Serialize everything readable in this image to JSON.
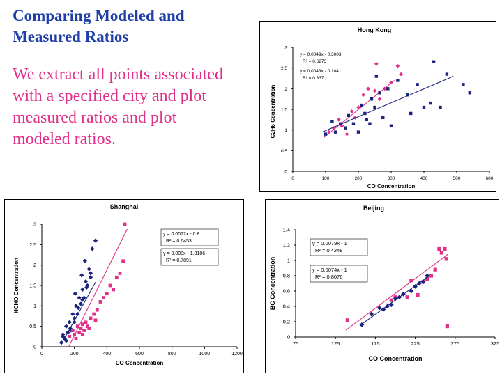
{
  "slide": {
    "title": "Comparing Modeled and  Measured Ratios",
    "body": "We extract all points associated with a specified city and plot measured ratios and plot modeled ratios."
  },
  "colors": {
    "measured": "#e0308a",
    "modeled": "#1a237e",
    "title": "#1f3fa8"
  },
  "chart_data": [
    {
      "type": "scatter",
      "title": "Hong Kong",
      "xlabel": "CO Concentration",
      "ylabel": "C2H6 Concentration",
      "xlim": [
        0,
        600
      ],
      "ylim": [
        0,
        3
      ],
      "xticks": [
        "0",
        "100",
        "200",
        "300",
        "400",
        "500",
        "600"
      ],
      "yticks": [
        "0",
        "0.5",
        "1",
        "1.5",
        "2",
        "2.5",
        "3"
      ],
      "legend": "top-left",
      "annotations": [
        {
          "eq": "y = 0.0049x - 0.3003",
          "r2": "R² = 0.6273"
        },
        {
          "eq": "y = 0.0043x - 0.1041",
          "r2": "R² = 0.337"
        }
      ],
      "series": [
        {
          "color": "#e0308a",
          "marker": "diamond",
          "x": [
            110,
            125,
            140,
            150,
            165,
            180,
            190,
            200,
            215,
            230,
            240,
            250,
            255,
            265,
            280,
            300,
            320,
            330
          ],
          "y": [
            0.95,
            1.05,
            1.25,
            1.1,
            0.9,
            1.45,
            1.3,
            1.55,
            1.85,
            2.0,
            1.75,
            1.95,
            2.6,
            1.75,
            2.0,
            2.15,
            2.55,
            2.35
          ],
          "fit": [
            [
              95,
              0.82
            ],
            [
              310,
              2.2
            ]
          ]
        },
        {
          "color": "#1a237e",
          "marker": "square",
          "x": [
            100,
            120,
            130,
            145,
            160,
            170,
            185,
            200,
            210,
            220,
            225,
            235,
            240,
            250,
            255,
            265,
            275,
            290,
            300,
            320,
            350,
            360,
            380,
            400,
            420,
            430,
            450,
            470,
            520,
            540
          ],
          "y": [
            0.9,
            1.2,
            0.95,
            1.15,
            1.05,
            1.35,
            1.15,
            0.95,
            1.6,
            1.4,
            1.25,
            1.15,
            1.75,
            1.55,
            2.3,
            1.9,
            1.3,
            2.0,
            1.1,
            2.2,
            1.85,
            1.4,
            2.1,
            1.55,
            1.65,
            2.65,
            1.55,
            2.35,
            2.1,
            1.9
          ],
          "fit": [
            [
              90,
              0.95
            ],
            [
              490,
              2.3
            ]
          ]
        }
      ]
    },
    {
      "type": "scatter",
      "title": "Shanghai",
      "xlabel": "CO Concentration",
      "ylabel": "HCHO Concentration",
      "xlim": [
        0,
        1200
      ],
      "ylim": [
        0,
        3
      ],
      "xticks": [
        "0",
        "200",
        "400",
        "600",
        "800",
        "1000",
        "1200"
      ],
      "yticks": [
        "0",
        "0.5",
        "1",
        "1.5",
        "2",
        "2.5",
        "3"
      ],
      "legend": "top-right",
      "annotations": [
        {
          "eq": "y = 0.0072x - 0.8",
          "r2": "R² = 0.6453"
        },
        {
          "eq": "y = 0.008x - 1.3186",
          "r2": "R² = 0.7891"
        }
      ],
      "series": [
        {
          "color": "#1a237e",
          "marker": "diamond",
          "x": [
            120,
            130,
            140,
            150,
            160,
            170,
            180,
            190,
            200,
            210,
            220,
            230,
            240,
            250,
            260,
            270,
            280,
            290,
            300,
            310,
            150,
            175,
            200,
            225,
            250,
            275,
            300,
            330,
            130,
            205,
            245,
            265
          ],
          "y": [
            0.1,
            0.3,
            0.2,
            0.5,
            0.35,
            0.6,
            0.4,
            0.8,
            0.6,
            1.0,
            0.8,
            1.2,
            1.05,
            1.4,
            1.2,
            1.6,
            1.5,
            1.9,
            1.7,
            2.4,
            0.15,
            0.45,
            0.7,
            0.95,
            1.15,
            1.45,
            1.8,
            2.6,
            0.25,
            1.3,
            1.75,
            2.1
          ],
          "fit": [
            [
              115,
              0.03
            ],
            [
              330,
              1.58
            ]
          ]
        },
        {
          "color": "#e0308a",
          "marker": "square",
          "x": [
            170,
            190,
            200,
            220,
            230,
            240,
            250,
            260,
            270,
            280,
            300,
            320,
            340,
            360,
            380,
            400,
            420,
            440,
            460,
            480,
            500,
            510,
            210,
            250,
            290,
            330
          ],
          "y": [
            0.25,
            0.4,
            0.3,
            0.5,
            0.35,
            0.45,
            0.55,
            0.4,
            0.6,
            0.5,
            0.7,
            0.8,
            0.9,
            1.1,
            1.2,
            1.3,
            1.5,
            1.4,
            1.7,
            1.8,
            2.1,
            3.0,
            0.2,
            0.3,
            0.45,
            0.65
          ],
          "fit": [
            [
              165,
              0.0
            ],
            [
              525,
              2.88
            ]
          ]
        }
      ]
    },
    {
      "type": "scatter",
      "title": "Beijing",
      "xlabel": "CO Concentration",
      "ylabel": "BC Concentration",
      "xlim": [
        75,
        325
      ],
      "ylim": [
        0,
        1.4
      ],
      "xticks": [
        "75",
        "125",
        "175",
        "225",
        "275",
        "325"
      ],
      "yticks": [
        "0",
        "0.2",
        "0.4",
        "0.6",
        "0.8",
        "1",
        "1.2",
        "1.4"
      ],
      "legend": "top-left",
      "annotations": [
        {
          "eq": "y = 0.0079x - 1",
          "r2": "R² = 0.4248"
        },
        {
          "eq": "y = 0.0074x - 1",
          "r2": "R² = 0.8076"
        }
      ],
      "series": [
        {
          "color": "#e0308a",
          "marker": "square",
          "x": [
            140,
            195,
            200,
            215,
            220,
            228,
            235,
            240,
            245,
            250,
            255,
            258,
            262,
            264,
            265
          ],
          "y": [
            0.22,
            0.48,
            0.52,
            0.52,
            0.74,
            0.55,
            0.72,
            0.76,
            0.8,
            0.88,
            1.15,
            1.1,
            1.15,
            1.02,
            0.14
          ],
          "fit": [
            [
              138,
              0.09
            ],
            [
              266,
              1.08
            ]
          ]
        },
        {
          "color": "#1a237e",
          "marker": "diamond",
          "x": [
            158,
            170,
            180,
            185,
            190,
            195,
            200,
            205,
            210,
            220,
            225,
            230,
            235,
            240
          ],
          "y": [
            0.16,
            0.3,
            0.38,
            0.36,
            0.4,
            0.42,
            0.5,
            0.52,
            0.56,
            0.6,
            0.66,
            0.7,
            0.72,
            0.8
          ],
          "fit": [
            [
              158,
              0.17
            ],
            [
              240,
              0.78
            ]
          ]
        }
      ]
    }
  ]
}
